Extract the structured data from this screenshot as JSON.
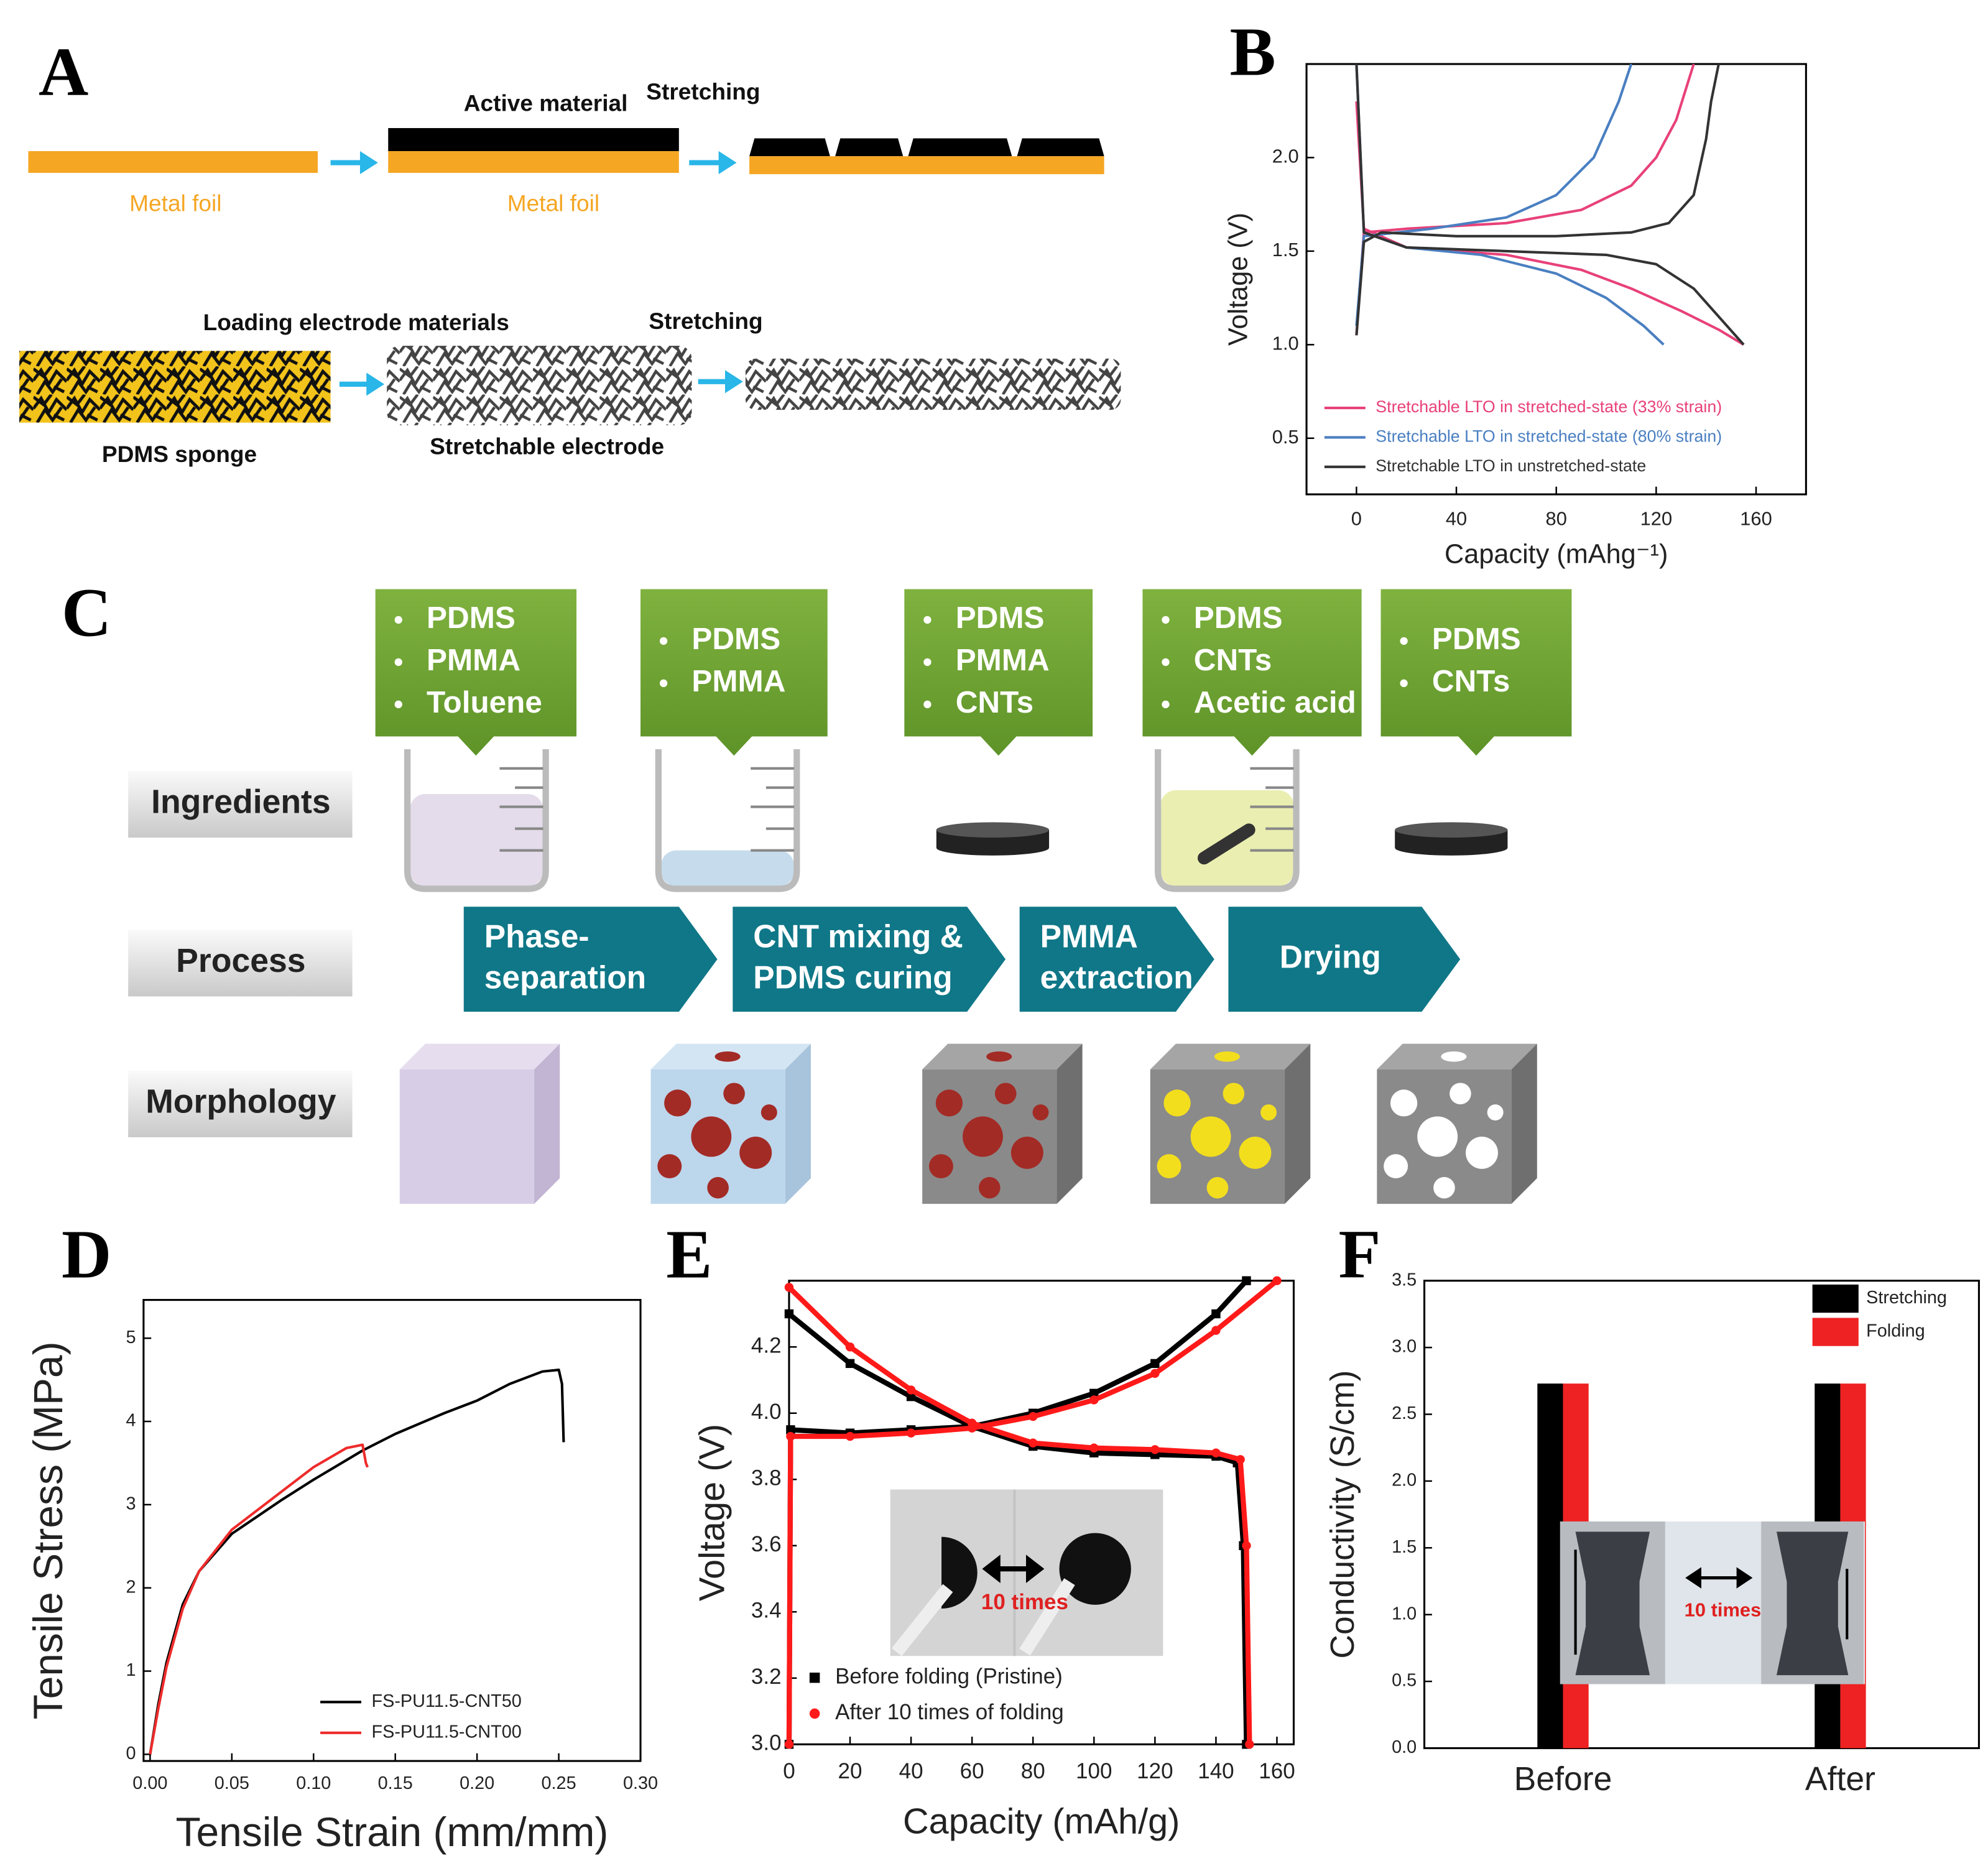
{
  "panels": {
    "labels": [
      "A",
      "B",
      "C",
      "D",
      "E",
      "F"
    ]
  },
  "diagram_a": {
    "active": "Active material",
    "stretch1": "Stretching",
    "foil1": "Metal foil",
    "foil2": "Metal foil",
    "loading": "Loading electrode materials",
    "stretch2": "Stretching",
    "sponge": "PDMS sponge",
    "electrode": "Stretchable electrode"
  },
  "diagram_c": {
    "callouts": [
      [
        "PDMS",
        "PMMA",
        "Toluene"
      ],
      [
        "PDMS",
        "PMMA"
      ],
      [
        "PDMS",
        "PMMA",
        "CNTs"
      ],
      [
        "PDMS",
        "CNTs",
        "Acetic acid"
      ],
      [
        "PDMS",
        "CNTs"
      ]
    ],
    "rows": [
      "Ingredients",
      "Process",
      "Morphology"
    ],
    "steps": [
      [
        "Phase-",
        "separation"
      ],
      [
        "CNT mixing &",
        "PDMS curing"
      ],
      [
        "PMMA",
        "extraction"
      ],
      [
        "Drying"
      ]
    ]
  },
  "chart_data": [
    {
      "type": "line",
      "x_label": "Capacity (mAhg⁻¹)",
      "y_label": "Voltage (V)",
      "xlim": [
        -20,
        180
      ],
      "xticks": [
        0,
        40,
        80,
        120,
        160
      ],
      "ylim": [
        0.2,
        2.5
      ],
      "yticks": [
        0.5,
        {
          "value": 1,
          "label": "1.0"
        },
        1.5,
        {
          "value": 2,
          "label": "2.0"
        }
      ],
      "legend": "lower left",
      "series": [
        {
          "name": "Stretchable LTO in stretched-state (33% strain)",
          "color": "#e8417a",
          "x": [
            0,
            3,
            20,
            60,
            90,
            110,
            130,
            145,
            155,
            null,
            0,
            3,
            20,
            60,
            90,
            110,
            120,
            128,
            135
          ],
          "values": [
            2.3,
            1.62,
            1.52,
            1.48,
            1.4,
            1.3,
            1.18,
            1.08,
            1.0,
            null,
            1.05,
            1.6,
            1.62,
            1.65,
            1.72,
            1.85,
            2.0,
            2.2,
            2.5
          ]
        },
        {
          "name": "Stretchable LTO in stretched-state (80% strain)",
          "color": "#4a7fc1",
          "x": [
            0,
            3,
            20,
            50,
            80,
            100,
            115,
            123,
            null,
            0,
            3,
            30,
            60,
            80,
            95,
            105,
            110
          ],
          "values": [
            2.5,
            1.6,
            1.52,
            1.48,
            1.38,
            1.25,
            1.1,
            1.0,
            null,
            1.1,
            1.58,
            1.62,
            1.68,
            1.8,
            2.0,
            2.3,
            2.5
          ]
        },
        {
          "name": "Stretchable LTO in unstretched-state",
          "color": "#333333",
          "x": [
            0,
            3,
            20,
            60,
            100,
            120,
            135,
            145,
            155,
            null,
            0,
            3,
            10,
            40,
            80,
            110,
            125,
            135,
            140,
            142,
            145
          ],
          "values": [
            2.5,
            1.6,
            1.52,
            1.5,
            1.48,
            1.43,
            1.3,
            1.15,
            1.0,
            null,
            1.05,
            1.55,
            1.6,
            1.58,
            1.58,
            1.6,
            1.65,
            1.8,
            2.1,
            2.3,
            2.5
          ]
        }
      ]
    },
    {
      "type": "line",
      "x_label": "Tensile Strain (mm/mm)",
      "y_label": "Tensile Stress (MPa)",
      "xlim": [
        -0.004,
        0.3
      ],
      "xticks": [
        {
          "value": 0,
          "label": "0.00"
        },
        {
          "value": 0.05,
          "label": "0.05"
        },
        {
          "value": 0.1,
          "label": "0.10"
        },
        {
          "value": 0.15,
          "label": "0.15"
        },
        {
          "value": 0.2,
          "label": "0.20"
        },
        {
          "value": 0.25,
          "label": "0.25"
        },
        {
          "value": 0.3,
          "label": "0.30"
        }
      ],
      "ylim": [
        -0.08,
        5.46
      ],
      "yticks": [
        0,
        1,
        2,
        3,
        4,
        5
      ],
      "legend": "lower right",
      "series": [
        {
          "name": "FS-PU11.5-CNT50",
          "color": "#000000",
          "x": [
            0,
            0.005,
            0.01,
            0.02,
            0.03,
            0.05,
            0.08,
            0.1,
            0.13,
            0.15,
            0.18,
            0.2,
            0.22,
            0.24,
            0.25,
            0.252,
            0.253
          ],
          "values": [
            0,
            0.6,
            1.1,
            1.8,
            2.2,
            2.65,
            3.05,
            3.3,
            3.65,
            3.85,
            4.1,
            4.25,
            4.45,
            4.6,
            4.62,
            4.45,
            3.75
          ]
        },
        {
          "name": "FS-PU11.5-CNT00",
          "color": "#ee2b2b",
          "x": [
            0,
            0.005,
            0.01,
            0.02,
            0.03,
            0.05,
            0.08,
            0.1,
            0.12,
            0.13,
            0.132,
            0.133
          ],
          "values": [
            0,
            0.55,
            1.05,
            1.75,
            2.2,
            2.7,
            3.15,
            3.45,
            3.68,
            3.72,
            3.5,
            3.45
          ]
        }
      ]
    },
    {
      "type": "line",
      "x_label": "Capacity (mAh/g)",
      "y_label": "Voltage (V)",
      "xlim": [
        0,
        165.5
      ],
      "xticks": [
        0,
        20,
        40,
        60,
        80,
        100,
        120,
        140,
        160
      ],
      "ylim": [
        3.0,
        4.4
      ],
      "yticks": [
        {
          "value": 3,
          "label": "3.0"
        },
        3.2,
        3.4,
        3.6,
        3.8,
        {
          "value": 4,
          "label": "4.0"
        },
        4.2
      ],
      "legend": "lower left",
      "inset_label": "10 times",
      "series": [
        {
          "name": "Before folding (Pristine)",
          "color": "#000000",
          "marker": "square",
          "x": [
            0,
            0.5,
            20,
            40,
            60,
            80,
            100,
            120,
            140,
            150,
            null,
            0,
            20,
            40,
            60,
            80,
            100,
            120,
            140,
            147,
            149,
            150
          ],
          "values": [
            3.0,
            3.95,
            3.94,
            3.95,
            3.96,
            4.0,
            4.06,
            4.15,
            4.3,
            4.4,
            null,
            4.3,
            4.15,
            4.05,
            3.96,
            3.9,
            3.88,
            3.875,
            3.87,
            3.85,
            3.6,
            3.0
          ]
        },
        {
          "name": "After 10 times of folding",
          "color": "#ff1a1a",
          "marker": "circle",
          "x": [
            0,
            0.5,
            20,
            40,
            60,
            80,
            100,
            120,
            140,
            160,
            null,
            0,
            20,
            40,
            60,
            80,
            100,
            120,
            140,
            148,
            150,
            151
          ],
          "values": [
            3.0,
            3.93,
            3.93,
            3.94,
            3.955,
            3.99,
            4.04,
            4.12,
            4.25,
            4.4,
            null,
            4.38,
            4.2,
            4.07,
            3.97,
            3.91,
            3.895,
            3.89,
            3.88,
            3.86,
            3.6,
            3.0
          ]
        }
      ]
    },
    {
      "type": "bar",
      "y_label": "Conductivity (S/cm)",
      "categories": [
        "Before",
        "After"
      ],
      "ylim": [
        0,
        3.5
      ],
      "yticks": [
        {
          "value": 0,
          "label": "0.0"
        },
        0.5,
        {
          "value": 1,
          "label": "1.0"
        },
        1.5,
        {
          "value": 2,
          "label": "2.0"
        },
        2.5,
        {
          "value": 3,
          "label": "3.0"
        },
        3.5
      ],
      "legend": "upper right",
      "inset_label": "10 times",
      "series": [
        {
          "name": "Stretching",
          "color": "#000000",
          "values": [
            2.73,
            2.73
          ]
        },
        {
          "name": "Folding",
          "color": "#ee2222",
          "values": [
            2.73,
            2.73
          ]
        }
      ]
    }
  ]
}
